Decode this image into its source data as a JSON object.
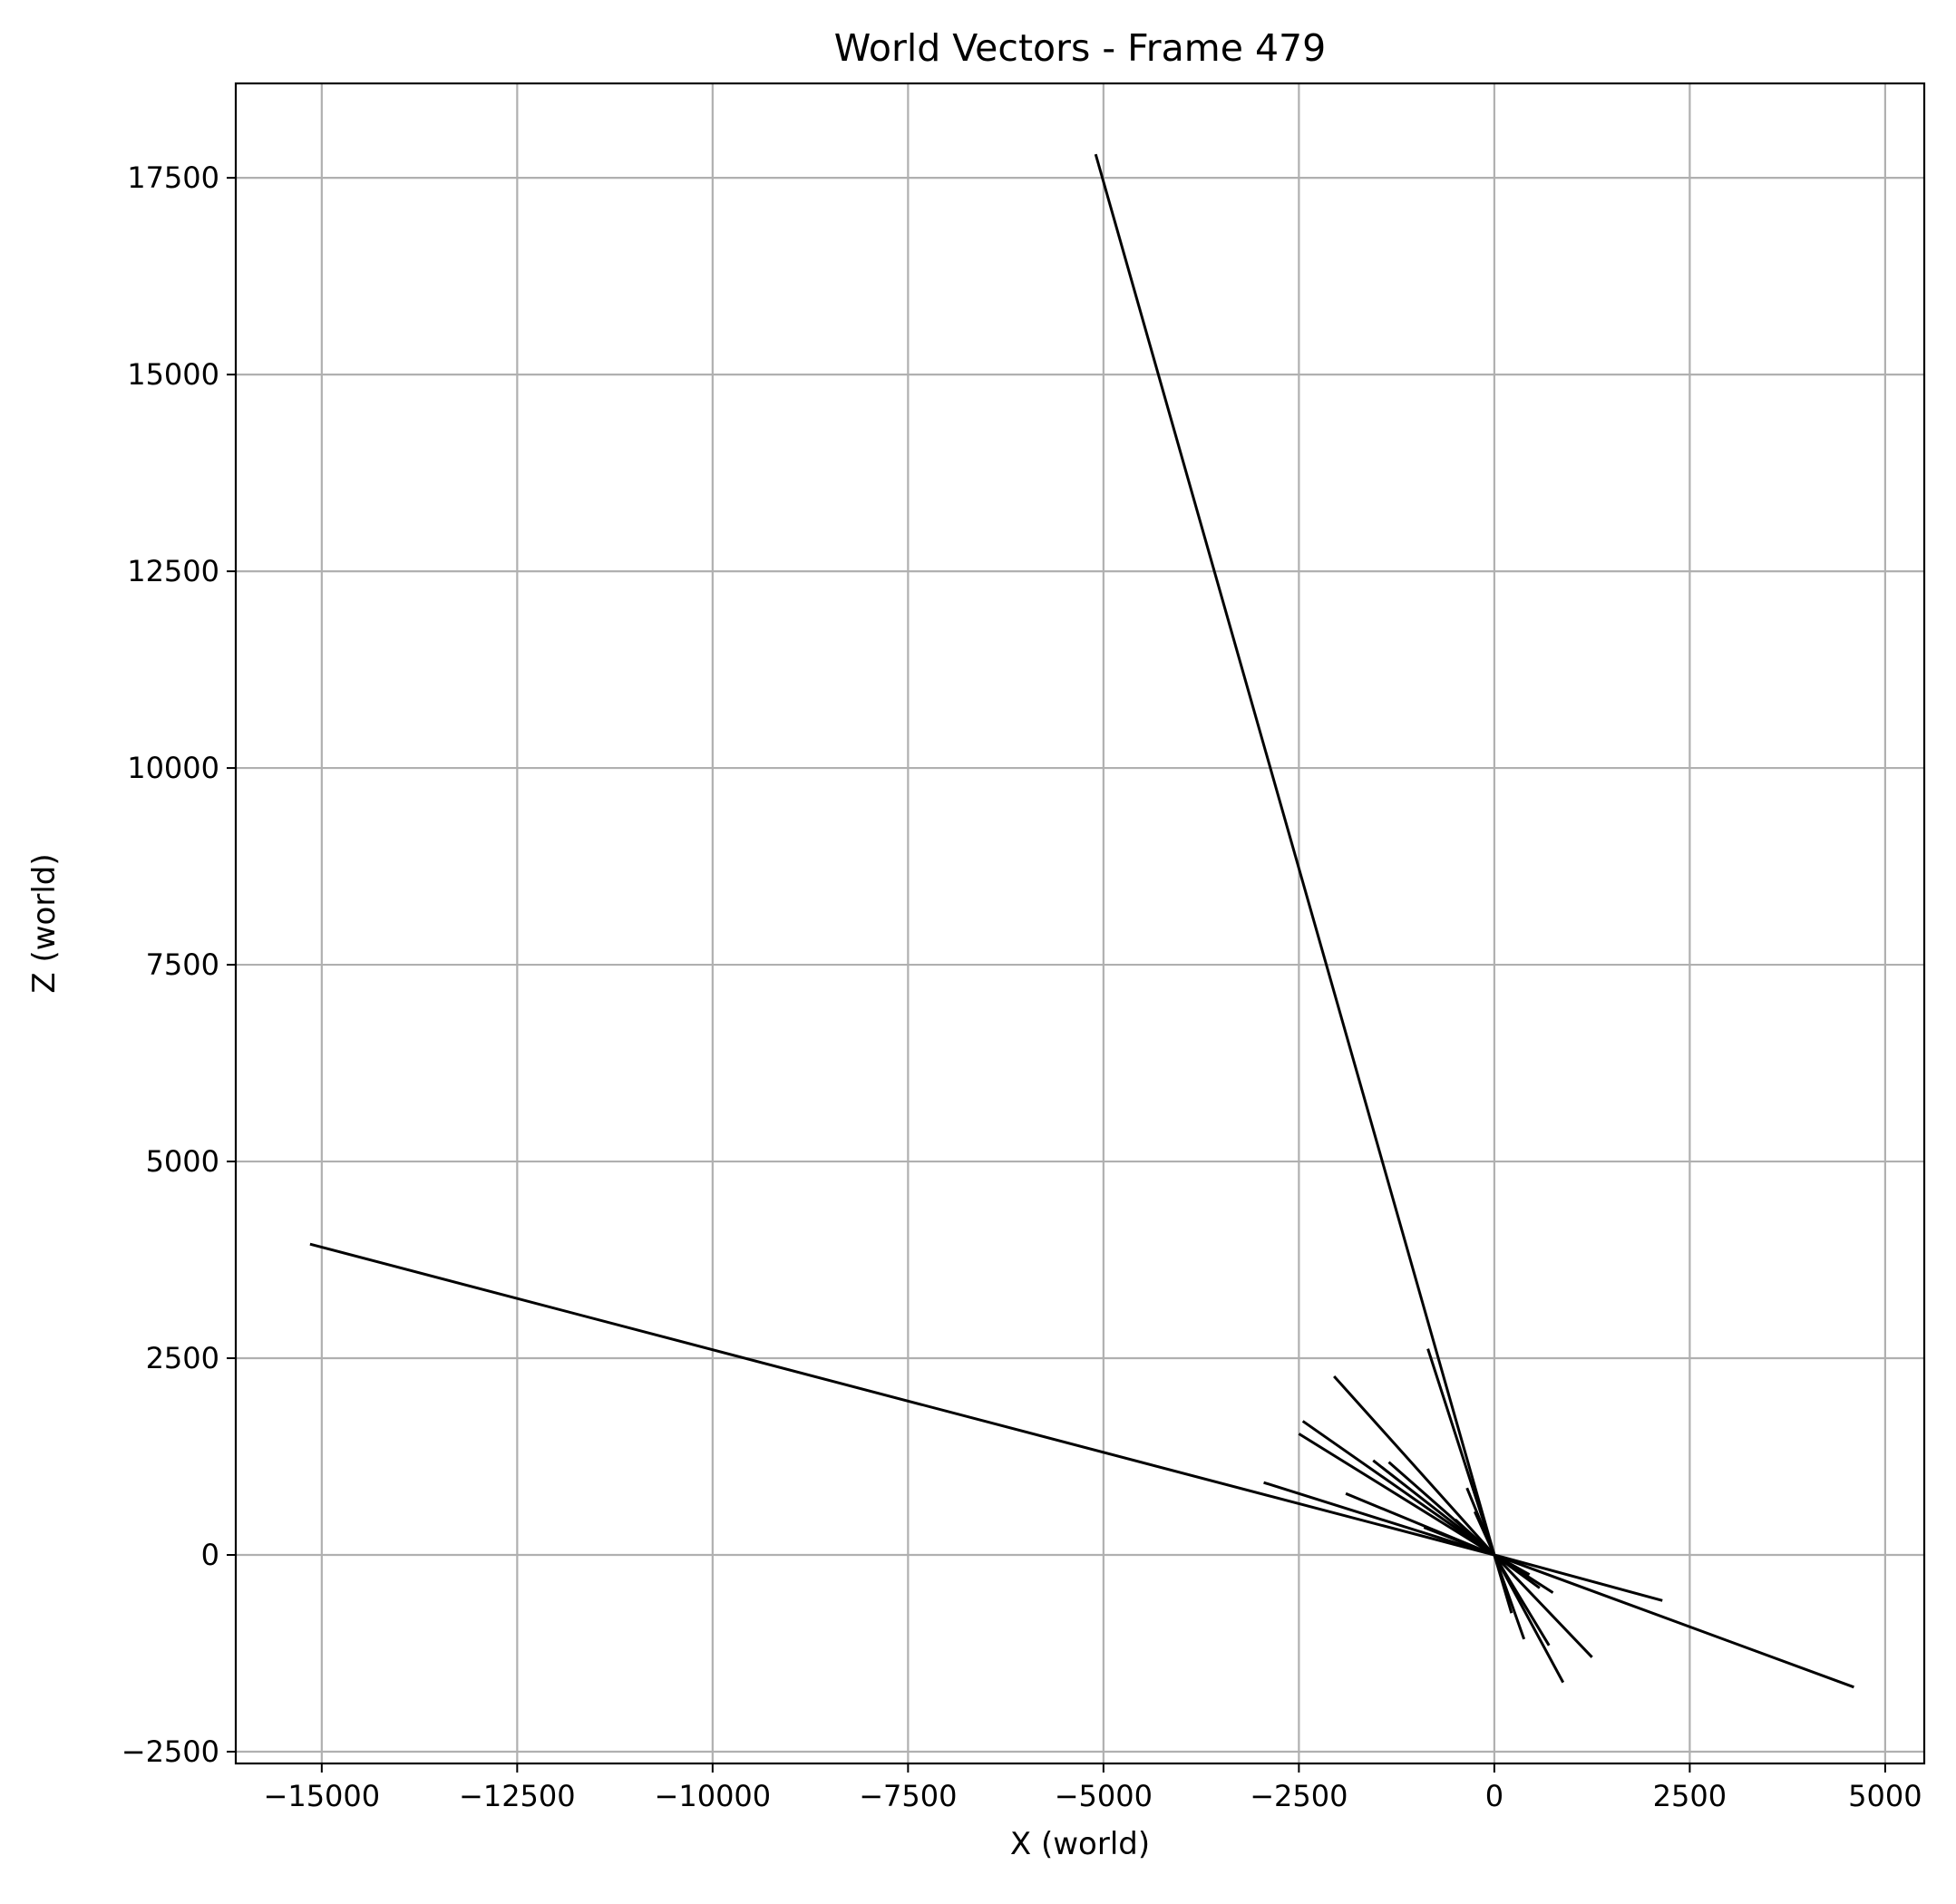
{
  "chart_data": {
    "type": "line",
    "title": "World Vectors - Frame 479",
    "xlabel": "X (world)",
    "ylabel": "Z (world)",
    "xlim": [
      -16100,
      5500
    ],
    "ylim": [
      -2650,
      18700
    ],
    "xticks": [
      -15000,
      -12500,
      -10000,
      -7500,
      -5000,
      -2500,
      0,
      2500,
      5000
    ],
    "yticks": [
      -2500,
      0,
      2500,
      5000,
      7500,
      10000,
      12500,
      15000,
      17500
    ],
    "xtick_labels": [
      "−15000",
      "−12500",
      "−10000",
      "−7500",
      "−5000",
      "−2500",
      "0",
      "2500",
      "5000"
    ],
    "ytick_labels": [
      "−2500",
      "0",
      "2500",
      "5000",
      "7500",
      "10000",
      "12500",
      "15000",
      "17500"
    ],
    "grid": true,
    "line_color": "#000000",
    "grid_color": "#b0b0b0",
    "vectors": [
      {
        "x0": 0,
        "z0": 0,
        "x1": -5100,
        "z1": 17800
      },
      {
        "x0": 0,
        "z0": 0,
        "x1": -15150,
        "z1": 3950
      },
      {
        "x0": 0,
        "z0": 0,
        "x1": 4600,
        "z1": -1680
      },
      {
        "x0": 0,
        "z0": 0,
        "x1": -2050,
        "z1": 2270
      },
      {
        "x0": 0,
        "z0": 0,
        "x1": -850,
        "z1": 2620
      },
      {
        "x0": 0,
        "z0": 0,
        "x1": -2450,
        "z1": 1700
      },
      {
        "x0": 0,
        "z0": 0,
        "x1": -2500,
        "z1": 1540
      },
      {
        "x0": 0,
        "z0": 0,
        "x1": -1550,
        "z1": 1200
      },
      {
        "x0": 0,
        "z0": 0,
        "x1": -1350,
        "z1": 1180
      },
      {
        "x0": 0,
        "z0": 0,
        "x1": -2950,
        "z1": 920
      },
      {
        "x0": 0,
        "z0": 0,
        "x1": -1900,
        "z1": 780
      },
      {
        "x0": 0,
        "z0": 0,
        "x1": -350,
        "z1": 850
      },
      {
        "x0": 0,
        "z0": 0,
        "x1": -900,
        "z1": 350
      },
      {
        "x0": 0,
        "z0": 0,
        "x1": -500,
        "z1": 450
      },
      {
        "x0": 0,
        "z0": 0,
        "x1": -250,
        "z1": 550
      },
      {
        "x0": 0,
        "z0": 0,
        "x1": 2150,
        "z1": -580
      },
      {
        "x0": 0,
        "z0": 0,
        "x1": 1250,
        "z1": -1300
      },
      {
        "x0": 0,
        "z0": 0,
        "x1": 880,
        "z1": -1620
      },
      {
        "x0": 0,
        "z0": 0,
        "x1": 700,
        "z1": -1150
      },
      {
        "x0": 0,
        "z0": 0,
        "x1": 380,
        "z1": -1070
      },
      {
        "x0": 0,
        "z0": 0,
        "x1": 220,
        "z1": -740
      },
      {
        "x0": 0,
        "z0": 0,
        "x1": 750,
        "z1": -480
      },
      {
        "x0": 0,
        "z0": 0,
        "x1": 580,
        "z1": -420
      },
      {
        "x0": 0,
        "z0": 0,
        "x1": 450,
        "z1": -250
      }
    ]
  }
}
